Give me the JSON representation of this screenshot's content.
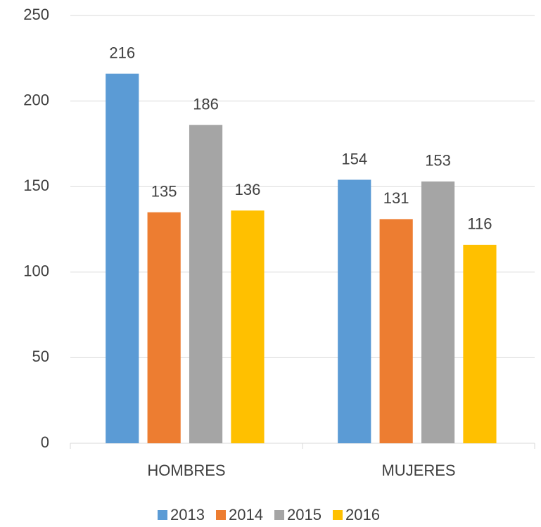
{
  "chart_data": {
    "type": "bar",
    "categories": [
      "HOMBRES",
      "MUJERES"
    ],
    "series": [
      {
        "name": "2013",
        "color": "#5b9bd5",
        "values": [
          216,
          154
        ]
      },
      {
        "name": "2014",
        "color": "#ed7d31",
        "values": [
          135,
          131
        ]
      },
      {
        "name": "2015",
        "color": "#a5a5a5",
        "values": [
          186,
          153
        ]
      },
      {
        "name": "2016",
        "color": "#ffc000",
        "values": [
          136,
          116
        ]
      }
    ],
    "ylim": [
      0,
      250
    ],
    "yticks": [
      0,
      50,
      100,
      150,
      200,
      250
    ],
    "grid": true,
    "legend": "bottom"
  }
}
